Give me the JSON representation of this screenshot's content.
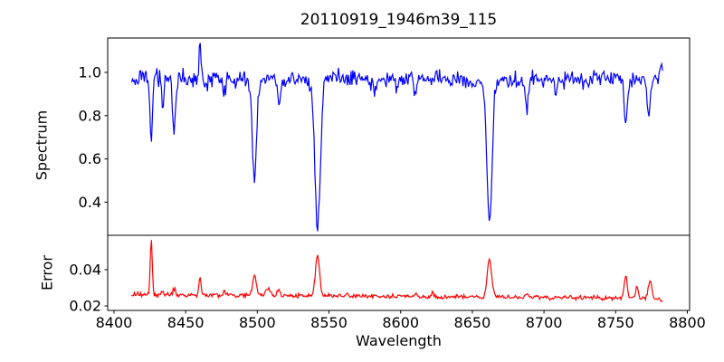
{
  "title": "20110919_1946m39_115",
  "colors": {
    "spectrum_line": "#0000ff",
    "error_line": "#ff0000",
    "axis": "#000000",
    "background": "#ffffff"
  },
  "chart_data": [
    {
      "type": "line",
      "series_name": "Spectrum",
      "title": "20110919_1946m39_115",
      "ylabel": "Spectrum",
      "color": "#0000ff",
      "xlim": [
        8395.6,
        8801.6
      ],
      "ylim": [
        0.247,
        1.159
      ],
      "yticks": [
        {
          "value": 1.0,
          "label": "1.0"
        },
        {
          "value": 0.8,
          "label": "0.8"
        },
        {
          "value": 0.6,
          "label": "0.6"
        },
        {
          "value": 0.4,
          "label": "0.4"
        }
      ],
      "grid": false,
      "legend": "none",
      "x_start": 8412.3,
      "x_end": 8783.0,
      "x_step": 0.63,
      "continuum": 0.968,
      "noise_amplitude": 0.04,
      "absorption_lines": [
        {
          "wavelength": 8426,
          "min": 0.685,
          "sigma": 0.8
        },
        {
          "wavelength": 8434,
          "min": 0.84,
          "sigma": 0.8
        },
        {
          "wavelength": 8442,
          "min": 0.755,
          "sigma": 1.1
        },
        {
          "wavelength": 8477,
          "min": 0.9,
          "sigma": 0.8
        },
        {
          "wavelength": 8484,
          "min": 0.925,
          "sigma": 0.7
        },
        {
          "wavelength": 8498,
          "min": 0.515,
          "sigma": 1.5
        },
        {
          "wavelength": 8515,
          "min": 0.85,
          "sigma": 0.9
        },
        {
          "wavelength": 8542,
          "min": 0.3,
          "sigma": 1.9
        },
        {
          "wavelength": 8582,
          "min": 0.92,
          "sigma": 0.8
        },
        {
          "wavelength": 8597,
          "min": 0.91,
          "sigma": 0.7
        },
        {
          "wavelength": 8610,
          "min": 0.895,
          "sigma": 0.9
        },
        {
          "wavelength": 8649,
          "min": 0.915,
          "sigma": 0.8
        },
        {
          "wavelength": 8662,
          "min": 0.305,
          "sigma": 1.8
        },
        {
          "wavelength": 8675,
          "min": 0.92,
          "sigma": 0.8
        },
        {
          "wavelength": 8688,
          "min": 0.81,
          "sigma": 1.0
        },
        {
          "wavelength": 8708,
          "min": 0.905,
          "sigma": 0.8
        },
        {
          "wavelength": 8757,
          "min": 0.77,
          "sigma": 1.2
        },
        {
          "wavelength": 8773,
          "min": 0.795,
          "sigma": 1.0
        }
      ],
      "emission_spikes": [
        {
          "wavelength": 8460,
          "max": 1.13,
          "sigma": 0.6
        },
        {
          "wavelength": 8782,
          "max": 1.03,
          "sigma": 0.7
        }
      ]
    },
    {
      "type": "line",
      "series_name": "Error",
      "ylabel": "Error",
      "xlabel": "Wavelength",
      "color": "#ff0000",
      "xlim": [
        8395.6,
        8801.6
      ],
      "ylim": [
        0.0175,
        0.059
      ],
      "yticks": [
        {
          "value": 0.04,
          "label": "0.04"
        },
        {
          "value": 0.02,
          "label": "0.02"
        }
      ],
      "xticks": [
        {
          "value": 8400,
          "label": "8400"
        },
        {
          "value": 8450,
          "label": "8450"
        },
        {
          "value": 8500,
          "label": "8500"
        },
        {
          "value": 8550,
          "label": "8550"
        },
        {
          "value": 8600,
          "label": "8600"
        },
        {
          "value": 8650,
          "label": "8650"
        },
        {
          "value": 8700,
          "label": "8700"
        },
        {
          "value": 8750,
          "label": "8750"
        },
        {
          "value": 8800,
          "label": "8800"
        }
      ],
      "grid": false,
      "legend": "none",
      "x_start": 8412.3,
      "x_end": 8783.0,
      "x_step": 0.63,
      "baseline_start": 0.0263,
      "baseline_end": 0.0242,
      "noise_amplitude": 0.0015,
      "spikes": [
        {
          "wavelength": 8426,
          "peak": 0.0575,
          "sigma": 0.7
        },
        {
          "wavelength": 8434,
          "peak": 0.028,
          "sigma": 0.8
        },
        {
          "wavelength": 8442,
          "peak": 0.0295,
          "sigma": 1.0
        },
        {
          "wavelength": 8460,
          "peak": 0.0365,
          "sigma": 0.7
        },
        {
          "wavelength": 8477,
          "peak": 0.028,
          "sigma": 0.8
        },
        {
          "wavelength": 8498,
          "peak": 0.037,
          "sigma": 1.2
        },
        {
          "wavelength": 8507,
          "peak": 0.0295,
          "sigma": 1.5
        },
        {
          "wavelength": 8515,
          "peak": 0.029,
          "sigma": 1.0
        },
        {
          "wavelength": 8542,
          "peak": 0.048,
          "sigma": 1.4
        },
        {
          "wavelength": 8562,
          "peak": 0.0265,
          "sigma": 1.0
        },
        {
          "wavelength": 8610,
          "peak": 0.027,
          "sigma": 1.0
        },
        {
          "wavelength": 8622,
          "peak": 0.0272,
          "sigma": 0.9
        },
        {
          "wavelength": 8662,
          "peak": 0.0455,
          "sigma": 1.5
        },
        {
          "wavelength": 8688,
          "peak": 0.0265,
          "sigma": 0.9
        },
        {
          "wavelength": 8757,
          "peak": 0.037,
          "sigma": 1.0
        },
        {
          "wavelength": 8765,
          "peak": 0.0315,
          "sigma": 0.9
        },
        {
          "wavelength": 8774,
          "peak": 0.035,
          "sigma": 1.1
        },
        {
          "wavelength": 8782,
          "peak": 0.0225,
          "sigma": 1.0
        }
      ]
    }
  ]
}
